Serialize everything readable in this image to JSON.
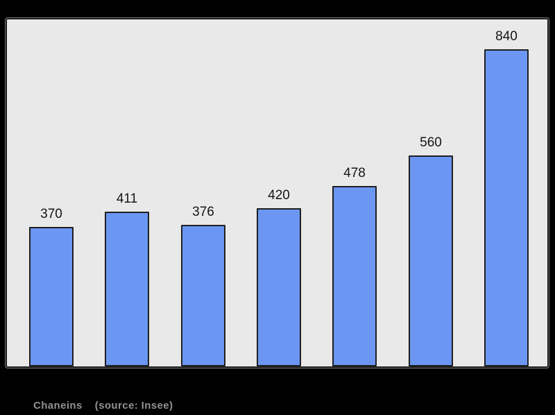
{
  "page_bg": "#000000",
  "chart_data": {
    "type": "bar",
    "values": [
      370,
      411,
      376,
      420,
      478,
      560,
      840
    ],
    "data_labels": [
      "370",
      "411",
      "376",
      "420",
      "478",
      "560",
      "840"
    ],
    "title": "",
    "xlabel": "",
    "ylabel": "",
    "ylim": [
      0,
      920
    ],
    "grid": false,
    "legend": false,
    "plot_bg": "#e9e9e9",
    "bar_fill": "#6b97f3",
    "bar_border": "#1f1f1f",
    "label_color": "#151515"
  },
  "caption": {
    "commune": "Chaneins",
    "source": "(source: Insee)",
    "color": "#919191"
  }
}
